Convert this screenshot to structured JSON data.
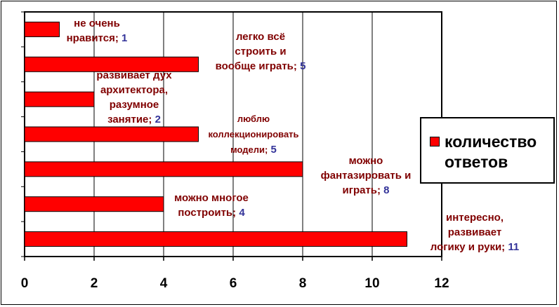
{
  "chart_data": {
    "type": "bar",
    "orientation": "horizontal",
    "categories": [
      "не очень нравится",
      "легко всё строить и вообще играть",
      "развивает дух архитектора, разумное занятие",
      "люблю коллекционировать модели",
      "можно фантазировать и играть",
      "можно многое построить",
      "интересно, развивает логику и руки"
    ],
    "series": [
      {
        "name": "количество ответов",
        "values": [
          1,
          5,
          2,
          5,
          8,
          4,
          11
        ]
      }
    ],
    "xlim": [
      0,
      12
    ],
    "xticks": [
      "0",
      "2",
      "4",
      "6",
      "8",
      "10",
      "12"
    ],
    "grid": true,
    "legend_position": "right",
    "bar_color": "#FF0000",
    "bar_outline": "#000000",
    "category_label_color": "#800000",
    "value_label_color": "#333399",
    "data_labels": [
      {
        "lines": [
          "не очень",
          "нравится;"
        ],
        "value": "1"
      },
      {
        "lines": [
          "легко всё",
          "строить и",
          "вообще играть;"
        ],
        "value": "5"
      },
      {
        "lines": [
          "развивает дух",
          "архитектора,",
          "разумное",
          "занятие;"
        ],
        "value": "2"
      },
      {
        "lines": [
          "люблю",
          "коллекционировать",
          "модели;"
        ],
        "value": "5"
      },
      {
        "lines": [
          "можно",
          "фантазировать и",
          "играть;"
        ],
        "value": "8"
      },
      {
        "lines": [
          "можно многое",
          "построить;"
        ],
        "value": "4"
      },
      {
        "lines": [
          "интересно,",
          "развивает",
          "логику и руки;"
        ],
        "value": "11"
      }
    ]
  }
}
